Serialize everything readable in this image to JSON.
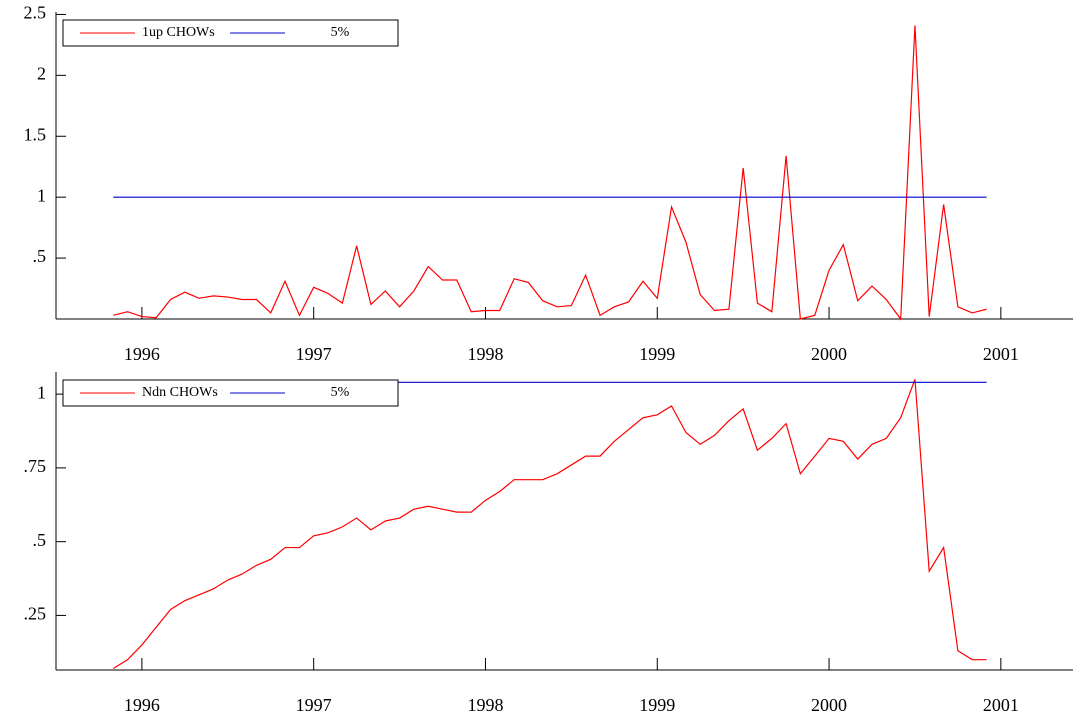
{
  "chart_data": [
    {
      "type": "line",
      "legend": "upper left",
      "x": [
        1995.833,
        1995.917,
        1996,
        1996.083,
        1996.167,
        1996.25,
        1996.333,
        1996.417,
        1996.5,
        1996.583,
        1996.667,
        1996.75,
        1996.833,
        1996.917,
        1997,
        1997.083,
        1997.167,
        1997.25,
        1997.333,
        1997.417,
        1997.5,
        1997.583,
        1997.667,
        1997.75,
        1997.833,
        1997.917,
        1998,
        1998.083,
        1998.167,
        1998.25,
        1998.333,
        1998.417,
        1998.5,
        1998.583,
        1998.667,
        1998.75,
        1998.833,
        1998.917,
        1999,
        1999.083,
        1999.167,
        1999.25,
        1999.333,
        1999.417,
        1999.5,
        1999.583,
        1999.667,
        1999.75,
        1999.833,
        1999.917,
        2000,
        2000.083,
        2000.167,
        2000.25,
        2000.333,
        2000.417,
        2000.5,
        2000.583,
        2000.667,
        2000.75,
        2000.833,
        2000.917
      ],
      "series": [
        {
          "name": "1up CHOWs",
          "color": "#ff0000",
          "values": [
            0.03,
            0.06,
            0.02,
            0.01,
            0.16,
            0.22,
            0.17,
            0.19,
            0.18,
            0.16,
            0.16,
            0.05,
            0.31,
            0.03,
            0.26,
            0.21,
            0.13,
            0.6,
            0.12,
            0.23,
            0.1,
            0.23,
            0.43,
            0.32,
            0.32,
            0.06,
            0.07,
            0.07,
            0.33,
            0.3,
            0.15,
            0.1,
            0.11,
            0.36,
            0.03,
            0.1,
            0.14,
            0.31,
            0.17,
            0.92,
            0.63,
            0.2,
            0.07,
            0.08,
            1.24,
            0.13,
            0.06,
            1.34,
            0,
            0.03,
            0.4,
            0.61,
            0.15,
            0.27,
            0.16,
            0,
            2.41,
            0.02,
            0.94,
            0.1,
            0.05,
            0.08
          ]
        },
        {
          "name": "5%",
          "color": "#0000cc",
          "values": [
            1,
            1,
            1,
            1,
            1,
            1,
            1,
            1,
            1,
            1,
            1,
            1,
            1,
            1,
            1,
            1,
            1,
            1,
            1,
            1,
            1,
            1,
            1,
            1,
            1,
            1,
            1,
            1,
            1,
            1,
            1,
            1,
            1,
            1,
            1,
            1,
            1,
            1,
            1,
            1,
            1,
            1,
            1,
            1,
            1,
            1,
            1,
            1,
            1,
            1,
            1,
            1,
            1,
            1,
            1,
            1,
            1,
            1,
            1,
            1,
            1,
            1
          ]
        }
      ],
      "xlim": [
        1995.5,
        2001.42
      ],
      "xticks": [
        1996,
        1997,
        1998,
        1999,
        2000,
        2001
      ],
      "ylim": [
        0,
        2.52
      ],
      "yticks": [
        {
          "value": 0.5,
          "label": ".5"
        },
        1,
        1.5,
        2,
        2.5
      ]
    },
    {
      "type": "line",
      "legend": "upper left",
      "x": [
        1995.833,
        1995.917,
        1996,
        1996.083,
        1996.167,
        1996.25,
        1996.333,
        1996.417,
        1996.5,
        1996.583,
        1996.667,
        1996.75,
        1996.833,
        1996.917,
        1997,
        1997.083,
        1997.167,
        1997.25,
        1997.333,
        1997.417,
        1997.5,
        1997.583,
        1997.667,
        1997.75,
        1997.833,
        1997.917,
        1998,
        1998.083,
        1998.167,
        1998.25,
        1998.333,
        1998.417,
        1998.5,
        1998.583,
        1998.667,
        1998.75,
        1998.833,
        1998.917,
        1999,
        1999.083,
        1999.167,
        1999.25,
        1999.333,
        1999.417,
        1999.5,
        1999.583,
        1999.667,
        1999.75,
        1999.833,
        1999.917,
        2000,
        2000.083,
        2000.167,
        2000.25,
        2000.333,
        2000.417,
        2000.5,
        2000.583,
        2000.667,
        2000.75,
        2000.833,
        2000.917
      ],
      "series": [
        {
          "name": "Ndn CHOWs",
          "color": "#ff0000",
          "values": [
            0.07,
            0.1,
            0.15,
            0.21,
            0.27,
            0.3,
            0.32,
            0.34,
            0.37,
            0.39,
            0.42,
            0.44,
            0.48,
            0.48,
            0.52,
            0.53,
            0.55,
            0.58,
            0.54,
            0.57,
            0.58,
            0.61,
            0.62,
            0.61,
            0.6,
            0.6,
            0.64,
            0.67,
            0.71,
            0.71,
            0.71,
            0.73,
            0.76,
            0.79,
            0.79,
            0.84,
            0.88,
            0.92,
            0.93,
            0.96,
            0.87,
            0.83,
            0.86,
            0.91,
            0.95,
            0.81,
            0.85,
            0.9,
            0.73,
            0.79,
            0.85,
            0.84,
            0.78,
            0.83,
            0.85,
            0.92,
            1.05,
            0.4,
            0.48,
            0.13,
            0.1,
            0.1
          ]
        },
        {
          "name": "5%",
          "color": "#0000cc",
          "values": [
            1.04,
            1.04,
            1.04,
            1.04,
            1.04,
            1.04,
            1.04,
            1.04,
            1.04,
            1.04,
            1.04,
            1.04,
            1.04,
            1.04,
            1.04,
            1.04,
            1.04,
            1.04,
            1.04,
            1.04,
            1.04,
            1.04,
            1.04,
            1.04,
            1.04,
            1.04,
            1.04,
            1.04,
            1.04,
            1.04,
            1.04,
            1.04,
            1.04,
            1.04,
            1.04,
            1.04,
            1.04,
            1.04,
            1.04,
            1.04,
            1.04,
            1.04,
            1.04,
            1.04,
            1.04,
            1.04,
            1.04,
            1.04,
            1.04,
            1.04,
            1.04,
            1.04,
            1.04,
            1.04,
            1.04,
            1.04,
            1.04,
            1.04,
            1.04,
            1.04,
            1.04,
            1.04
          ]
        }
      ],
      "xlim": [
        1995.5,
        2001.42
      ],
      "xticks": [
        1996,
        1997,
        1998,
        1999,
        2000,
        2001
      ],
      "ylim": [
        0.065,
        1.075
      ],
      "yticks": [
        {
          "value": 0.25,
          "label": ".25"
        },
        {
          "value": 0.5,
          "label": ".5"
        },
        {
          "value": 0.75,
          "label": ".75"
        },
        1
      ]
    }
  ]
}
